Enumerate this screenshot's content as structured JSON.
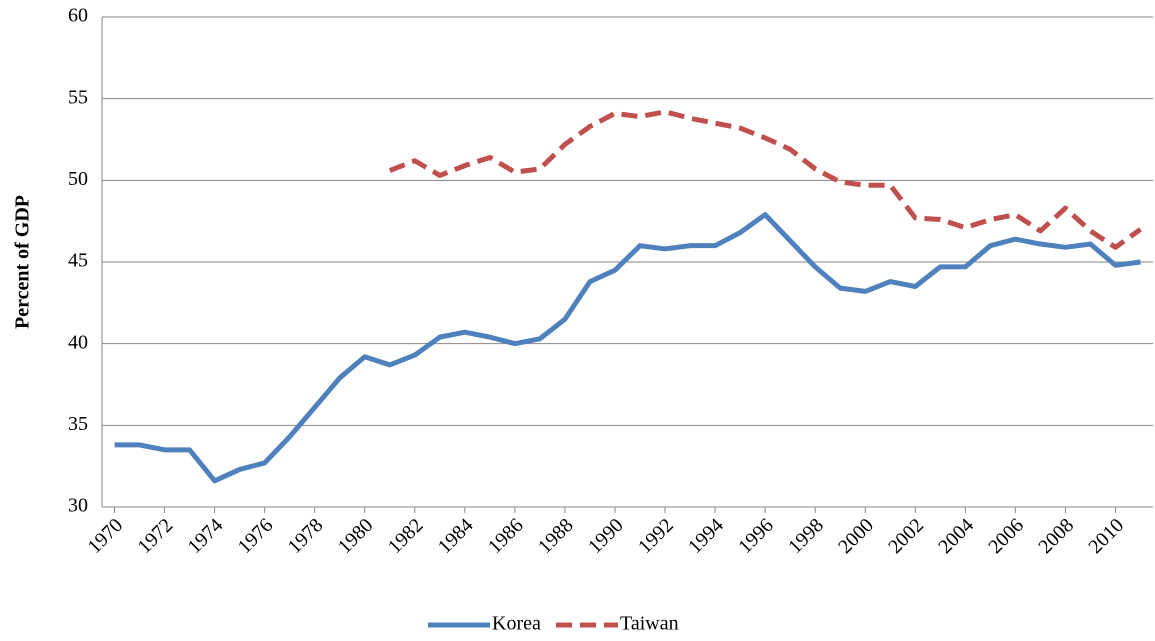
{
  "chart_data": {
    "type": "line",
    "y_label": "Percent of GDP",
    "x": [
      1970,
      1971,
      1972,
      1973,
      1974,
      1975,
      1976,
      1977,
      1978,
      1979,
      1980,
      1981,
      1982,
      1983,
      1984,
      1985,
      1986,
      1987,
      1988,
      1989,
      1990,
      1991,
      1992,
      1993,
      1994,
      1995,
      1996,
      1997,
      1998,
      1999,
      2000,
      2001,
      2002,
      2003,
      2004,
      2005,
      2006,
      2007,
      2008,
      2009,
      2010,
      2011
    ],
    "series": [
      {
        "name": "Korea",
        "color": "#4f81bd",
        "dash": false,
        "values": [
          33.8,
          33.8,
          33.5,
          33.5,
          31.6,
          32.3,
          32.7,
          34.3,
          36.1,
          37.9,
          39.2,
          38.7,
          39.3,
          40.4,
          40.7,
          40.4,
          40.0,
          40.3,
          41.5,
          43.8,
          44.5,
          46.0,
          45.8,
          46.0,
          46.0,
          46.8,
          47.9,
          46.3,
          44.7,
          43.4,
          43.2,
          43.8,
          43.5,
          44.7,
          44.7,
          46.0,
          46.4,
          46.1,
          45.9,
          46.1,
          44.8,
          45.0
        ]
      },
      {
        "name": "Taiwan",
        "color": "#c0504d",
        "dash": true,
        "values": [
          null,
          null,
          null,
          null,
          null,
          null,
          null,
          null,
          null,
          null,
          null,
          50.6,
          51.2,
          50.3,
          50.9,
          51.4,
          50.5,
          50.7,
          52.2,
          53.3,
          54.1,
          53.9,
          54.2,
          53.8,
          53.5,
          53.2,
          52.6,
          51.9,
          50.7,
          49.9,
          49.7,
          49.7,
          47.7,
          47.6,
          47.1,
          47.6,
          47.9,
          46.9,
          48.3,
          46.9,
          45.9,
          47.0
        ]
      }
    ],
    "xlim": [
      1969.5,
      2011.5
    ],
    "xticks": [
      1970,
      1972,
      1974,
      1976,
      1978,
      1980,
      1982,
      1984,
      1986,
      1988,
      1990,
      1992,
      1994,
      1996,
      1998,
      2000,
      2002,
      2004,
      2006,
      2008,
      2010
    ],
    "ylim": [
      30,
      60
    ],
    "yticks": [
      30,
      35,
      40,
      45,
      50,
      55,
      60
    ],
    "grid": true,
    "legend": "bottom"
  }
}
